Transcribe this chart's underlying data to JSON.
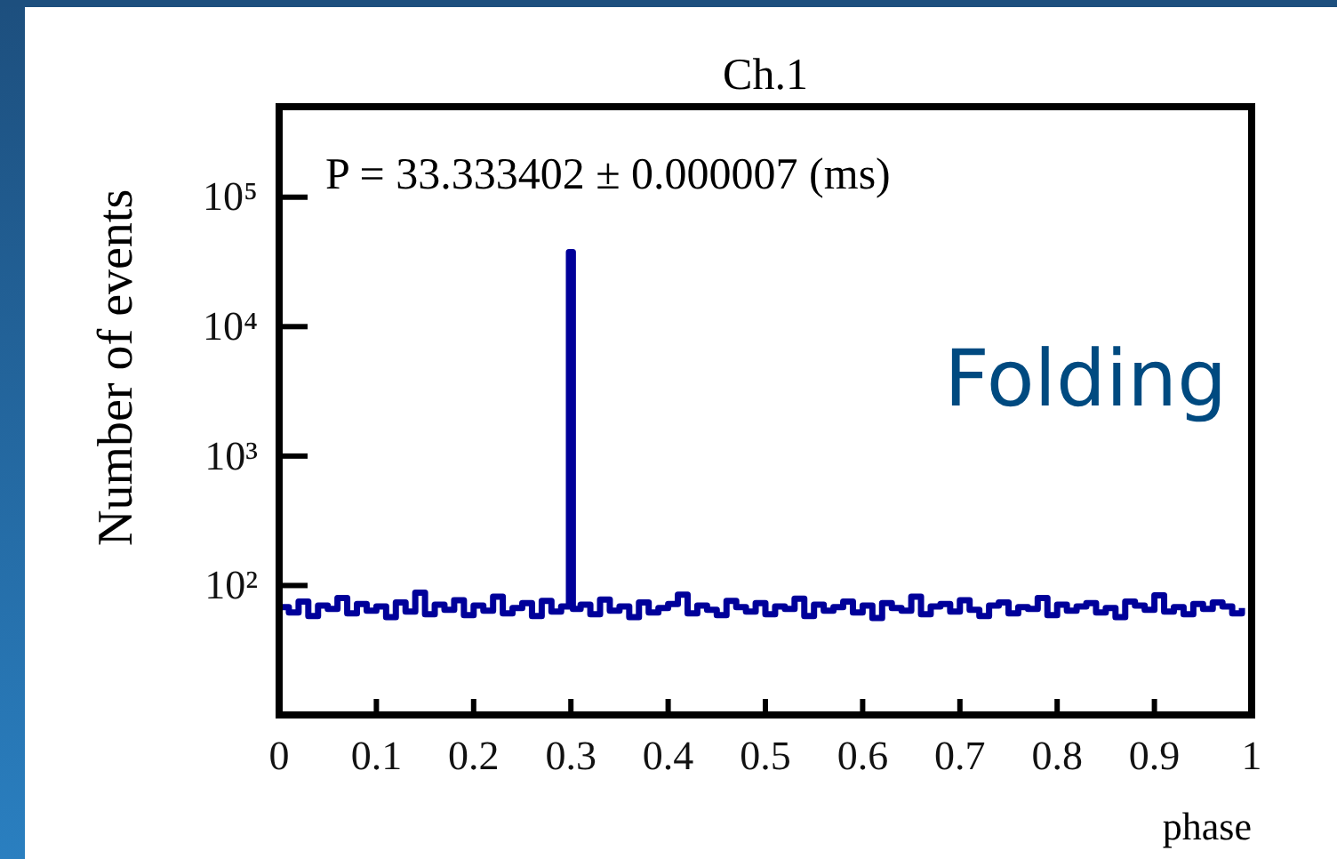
{
  "chart_data": {
    "type": "step",
    "title": "Ch.1",
    "xlabel": "phase",
    "ylabel": "Number of events",
    "log": true,
    "xlim": [
      0,
      1
    ],
    "xticks": [
      0,
      0.1,
      0.2,
      0.3,
      0.4,
      0.5,
      0.6,
      0.7,
      0.8,
      0.9,
      1
    ],
    "ylim": [
      10,
      500000
    ],
    "yticks": [
      {
        "value": 100,
        "label": "10²"
      },
      {
        "value": 1000,
        "label": "10³"
      },
      {
        "value": 10000,
        "label": "10⁴"
      },
      {
        "value": 100000,
        "label": "10⁵"
      }
    ],
    "annotations": [
      "P = 33.333402 ± 0.000007 (ms)",
      "Folding"
    ],
    "series": [
      {
        "color": "#00009a",
        "x": [
          0,
          0.01,
          0.02,
          0.03,
          0.04,
          0.05,
          0.06,
          0.07,
          0.08,
          0.09,
          0.1,
          0.11,
          0.12,
          0.13,
          0.14,
          0.15,
          0.16,
          0.17,
          0.18,
          0.19,
          0.2,
          0.21,
          0.22,
          0.23,
          0.24,
          0.25,
          0.26,
          0.27,
          0.28,
          0.29,
          0.298,
          0.302,
          0.31,
          0.32,
          0.33,
          0.34,
          0.35,
          0.36,
          0.37,
          0.38,
          0.39,
          0.4,
          0.41,
          0.42,
          0.43,
          0.44,
          0.45,
          0.46,
          0.47,
          0.48,
          0.49,
          0.5,
          0.51,
          0.52,
          0.53,
          0.54,
          0.55,
          0.56,
          0.57,
          0.58,
          0.59,
          0.6,
          0.61,
          0.62,
          0.63,
          0.64,
          0.65,
          0.66,
          0.67,
          0.68,
          0.69,
          0.7,
          0.71,
          0.72,
          0.73,
          0.74,
          0.75,
          0.76,
          0.77,
          0.78,
          0.79,
          0.8,
          0.81,
          0.82,
          0.83,
          0.84,
          0.85,
          0.86,
          0.87,
          0.88,
          0.89,
          0.9,
          0.91,
          0.92,
          0.93,
          0.94,
          0.95,
          0.96,
          0.97,
          0.98,
          0.99
        ],
        "values": [
          68,
          62,
          75,
          58,
          70,
          66,
          80,
          61,
          72,
          64,
          69,
          57,
          74,
          63,
          88,
          60,
          71,
          65,
          77,
          59,
          70,
          64,
          82,
          61,
          67,
          73,
          58,
          76,
          63,
          69,
          37600,
          66,
          71,
          60,
          78,
          64,
          69,
          57,
          74,
          62,
          67,
          72,
          85,
          61,
          70,
          65,
          59,
          76,
          68,
          63,
          73,
          60,
          69,
          66,
          79,
          58,
          71,
          64,
          68,
          75,
          62,
          70,
          56,
          73,
          67,
          64,
          82,
          60,
          69,
          72,
          63,
          77,
          65,
          58,
          70,
          74,
          61,
          68,
          66,
          80,
          59,
          71,
          64,
          69,
          73,
          62,
          67,
          57,
          75,
          70,
          65,
          84,
          63,
          68,
          60,
          72,
          66,
          74,
          69,
          61,
          67
        ]
      }
    ]
  }
}
